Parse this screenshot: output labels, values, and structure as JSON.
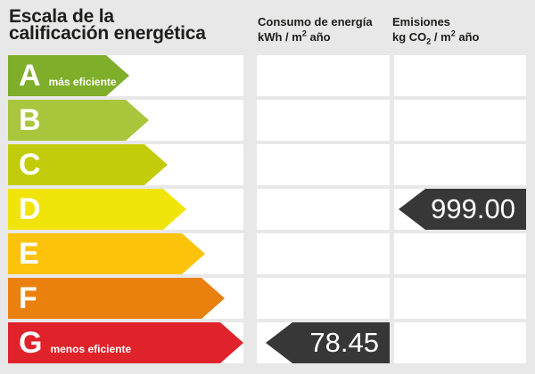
{
  "header": {
    "title_line1": "Escala de la",
    "title_line2": "calificación energética",
    "consumo": {
      "title": "Consumo de energía",
      "unit_pre": "kWh / m",
      "unit_sup": "2",
      "unit_post": " año"
    },
    "emisiones": {
      "title": "Emisiones",
      "unit_pre": "kg CO",
      "unit_sub": "2",
      "unit_mid": " / m",
      "unit_sup": "2",
      "unit_post": " año"
    }
  },
  "scale": {
    "rows": [
      {
        "letter": "A",
        "label": "más eficiente",
        "color": "#7fae2a"
      },
      {
        "letter": "B",
        "label": "",
        "color": "#a9c63c"
      },
      {
        "letter": "C",
        "label": "",
        "color": "#c3cc0a"
      },
      {
        "letter": "D",
        "label": "",
        "color": "#f1e40b"
      },
      {
        "letter": "E",
        "label": "",
        "color": "#fcc30a"
      },
      {
        "letter": "F",
        "label": "",
        "color": "#ea810e"
      },
      {
        "letter": "G",
        "label": "menos eficiente",
        "color": "#e0222a"
      }
    ]
  },
  "values": {
    "consumo": {
      "value": "78.45",
      "rating": "G"
    },
    "emisiones": {
      "value": "999.00",
      "rating": "D"
    }
  },
  "colors": {
    "background": "#e8e8e8",
    "cell": "#ffffff",
    "badge": "#373737",
    "title_text": "#1d1d1b",
    "bar_text": "#ffffff"
  },
  "chart_data": {
    "type": "bar",
    "title": "Escala de la calificación energética",
    "categories": [
      "A",
      "B",
      "C",
      "D",
      "E",
      "F",
      "G"
    ],
    "category_colors": [
      "#7fae2a",
      "#a9c63c",
      "#c3cc0a",
      "#f1e40b",
      "#fcc30a",
      "#ea810e",
      "#e0222a"
    ],
    "annotations": [
      "A más eficiente",
      "G menos eficiente"
    ],
    "series": [
      {
        "name": "Consumo de energía (kWh / m² año)",
        "value": 78.45,
        "rating": "G"
      },
      {
        "name": "Emisiones (kg CO₂ / m² año)",
        "value": 999.0,
        "rating": "D"
      }
    ],
    "legend_position": "top",
    "grid": false
  }
}
